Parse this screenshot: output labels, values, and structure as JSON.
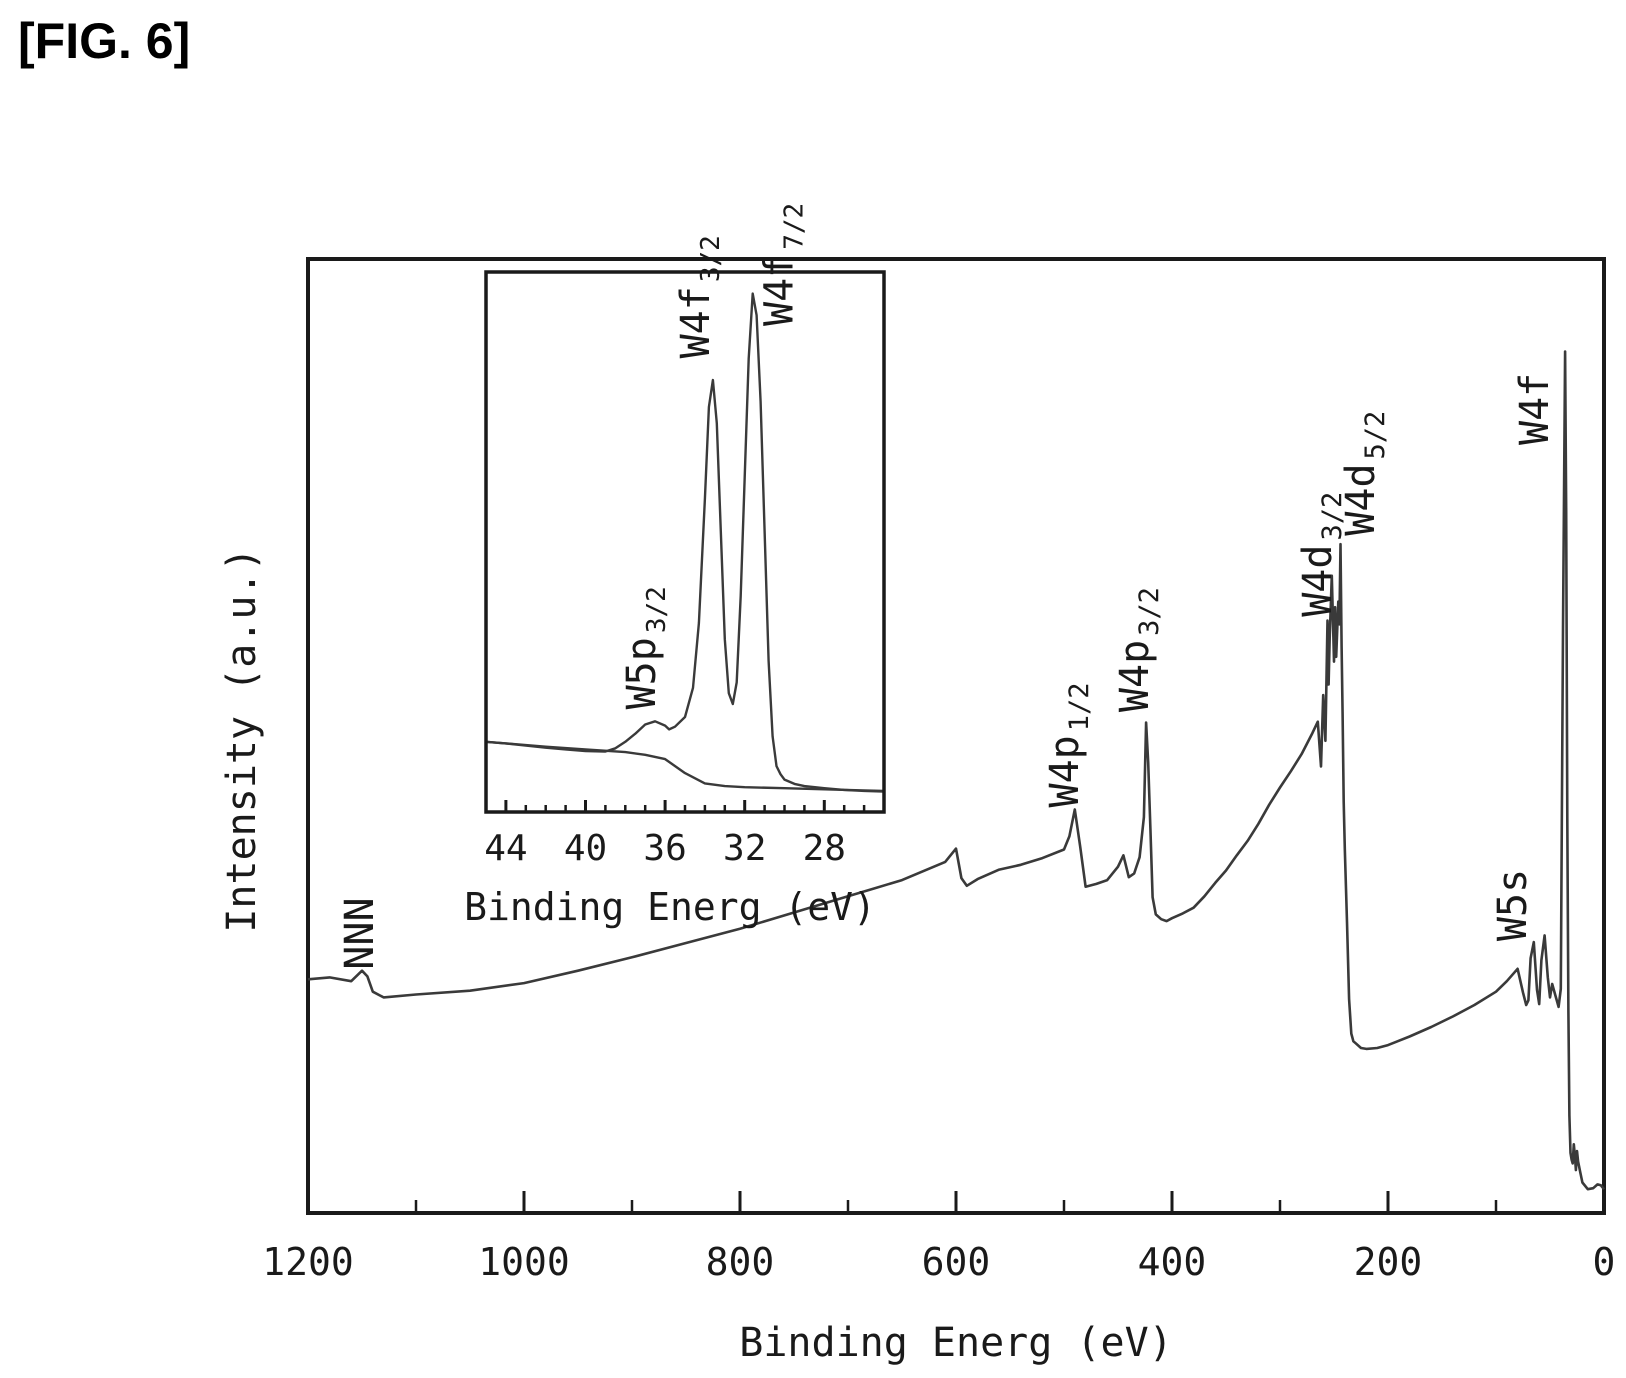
{
  "figure_label": "[FIG. 6]",
  "colors": {
    "line": "#3a3a3a",
    "axes": "#1a1a1a"
  },
  "chart_data": [
    {
      "type": "line",
      "title": "",
      "xlabel": "Binding Energ (eV)",
      "ylabel": "Intensity (a.u.)",
      "x_reversed": true,
      "xlim": [
        1200,
        0
      ],
      "ylim": [
        0,
        100
      ],
      "y_ticks_labeled": false,
      "xticks": [
        1200,
        1000,
        800,
        600,
        400,
        200,
        0
      ],
      "xtick_labels": [
        "1200",
        "1000",
        "800",
        "600",
        "400",
        "200",
        "0"
      ],
      "x_minor_ticks": [
        1100,
        900,
        700,
        500,
        300,
        100
      ],
      "series": [
        {
          "x": [
            1200,
            1180,
            1160,
            1150,
            1145,
            1140,
            1130,
            1100,
            1050,
            1000,
            950,
            900,
            850,
            800,
            750,
            700,
            650,
            610,
            600,
            595,
            590,
            580,
            560,
            540,
            520,
            500,
            495,
            490,
            485,
            480,
            470,
            460,
            450,
            445,
            440,
            435,
            430,
            426,
            424,
            422,
            420,
            418,
            415,
            410,
            405,
            400,
            390,
            380,
            370,
            360,
            350,
            340,
            330,
            320,
            310,
            300,
            290,
            280,
            270,
            265,
            262,
            260,
            258,
            256,
            255,
            254,
            252,
            250,
            249,
            248,
            246,
            245,
            244,
            243,
            242,
            241,
            240,
            238,
            236,
            234,
            232,
            230,
            225,
            220,
            210,
            200,
            180,
            160,
            140,
            120,
            100,
            90,
            80,
            75,
            72,
            70,
            68,
            65,
            62,
            60,
            58,
            55,
            52,
            50,
            48,
            45,
            42,
            40,
            38,
            36,
            35,
            34,
            33,
            32,
            31,
            30,
            29,
            28,
            27,
            26,
            25,
            24,
            22,
            20,
            15,
            10,
            6,
            3,
            0
          ],
          "y": [
            24.5,
            24.7,
            24.3,
            25.4,
            24.8,
            23.2,
            22.6,
            22.9,
            23.3,
            24.1,
            25.4,
            26.8,
            28.3,
            29.8,
            31.5,
            33.2,
            34.9,
            36.8,
            38.2,
            35.1,
            34.3,
            35.0,
            36.0,
            36.5,
            37.2,
            38.1,
            39.5,
            42.3,
            38.4,
            34.2,
            34.5,
            34.9,
            36.3,
            37.5,
            35.2,
            35.6,
            37.3,
            41.5,
            51.4,
            47.2,
            40.3,
            33.1,
            31.3,
            30.8,
            30.6,
            30.9,
            31.4,
            32.0,
            33.2,
            34.6,
            35.9,
            37.5,
            39.0,
            40.8,
            42.8,
            44.6,
            46.3,
            48.1,
            50.3,
            51.5,
            46.8,
            54.3,
            49.5,
            62.1,
            55.4,
            60.3,
            66.8,
            57.8,
            63.5,
            58.3,
            64.1,
            61.7,
            70.1,
            59.4,
            52.3,
            43.1,
            38.2,
            30.5,
            22.4,
            18.8,
            18.0,
            17.8,
            17.3,
            17.2,
            17.3,
            17.6,
            18.5,
            19.5,
            20.6,
            21.8,
            23.2,
            24.3,
            25.6,
            23.1,
            21.8,
            22.3,
            26.7,
            28.4,
            23.4,
            21.9,
            26.5,
            29.1,
            24.7,
            22.6,
            24.0,
            22.8,
            21.6,
            23.5,
            61.2,
            90.3,
            73.4,
            41.3,
            21.1,
            10.2,
            6.3,
            5.6,
            5.2,
            7.2,
            6.1,
            4.5,
            6.5,
            5.4,
            4.3,
            3.2,
            2.5,
            2.6,
            3.0,
            2.9,
            2.5
          ]
        }
      ],
      "annotations": [
        {
          "text": "NNN",
          "sub": "",
          "x": 1140,
          "y": 25.5
        },
        {
          "text": "W4p",
          "sub": "1/2",
          "x": 487,
          "y": 42.5
        },
        {
          "text": "W4p",
          "sub": "3/2",
          "x": 422,
          "y": 52.5
        },
        {
          "text": "W4d",
          "sub": "3/2",
          "x": 253,
          "y": 62.5
        },
        {
          "text": "W4d",
          "sub": "5/2",
          "x": 213,
          "y": 71.0
        },
        {
          "text": "W5s",
          "sub": "",
          "x": 72,
          "y": 28.5
        },
        {
          "text": "W4f",
          "sub": "",
          "x": 52,
          "y": 80.5
        }
      ]
    },
    {
      "type": "line",
      "title": "",
      "xlabel": "Binding Energ (eV)",
      "ylabel": "",
      "x_reversed": true,
      "xlim": [
        45,
        25
      ],
      "ylim": [
        0,
        100
      ],
      "y_ticks_labeled": false,
      "xticks": [
        44,
        40,
        36,
        32,
        28
      ],
      "xtick_labels": [
        "44",
        "40",
        "36",
        "32",
        "28"
      ],
      "x_minor_ticks": [
        43,
        42,
        41,
        39,
        38,
        37,
        35,
        34,
        33,
        31,
        30,
        29,
        27,
        26
      ],
      "series": [
        {
          "x": [
            45,
            44,
            43,
            42,
            41,
            40,
            39,
            38.5,
            38,
            37.5,
            37,
            36.5,
            36,
            35.8,
            35.5,
            35,
            34.6,
            34.3,
            34,
            33.8,
            33.6,
            33.4,
            33.2,
            33,
            32.8,
            32.6,
            32.4,
            32.2,
            32,
            31.8,
            31.6,
            31.4,
            31.2,
            31,
            30.8,
            30.6,
            30.4,
            30.2,
            30,
            29.5,
            29,
            28,
            27,
            26,
            25
          ],
          "y": [
            13.0,
            12.7,
            12.3,
            11.9,
            11.6,
            11.3,
            11.2,
            11.8,
            13.0,
            14.5,
            16.2,
            16.8,
            16.0,
            15.3,
            15.8,
            17.6,
            23.0,
            35.0,
            58.0,
            75.0,
            80.0,
            72.0,
            52.0,
            32.0,
            22.0,
            20.0,
            24.0,
            40.0,
            62.0,
            84.0,
            96.0,
            92.0,
            76.0,
            52.0,
            28.0,
            14.0,
            8.5,
            7.0,
            6.0,
            5.2,
            4.8,
            4.4,
            4.1,
            3.9,
            3.8
          ]
        },
        {
          "x": [
            45,
            44,
            42,
            40,
            38,
            37,
            36,
            35,
            34,
            33,
            32,
            30,
            28,
            26,
            25
          ],
          "y": [
            13.0,
            12.7,
            12.1,
            11.6,
            11.1,
            10.6,
            9.8,
            7.2,
            5.3,
            4.8,
            4.6,
            4.4,
            4.2,
            4.0,
            3.9
          ]
        }
      ],
      "annotations": [
        {
          "text": "W5p",
          "sub": "3/2",
          "x": 36.5,
          "y": 19.0
        },
        {
          "text": "W4f",
          "sub": "3/2",
          "x": 33.8,
          "y": 84.0
        },
        {
          "text": "W4f",
          "sub": "7/2",
          "x": 29.6,
          "y": 90.0
        }
      ]
    }
  ]
}
